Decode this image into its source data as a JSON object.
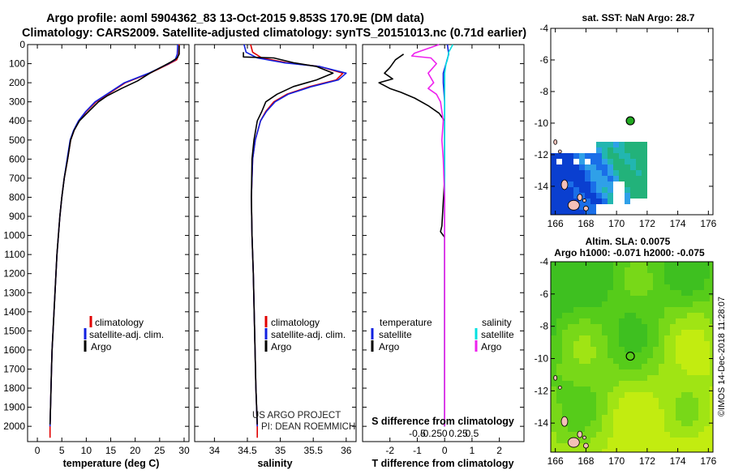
{
  "header": {
    "title_line1": "Argo profile: aoml 5904362_83 13-Oct-2015 9.853S 170.9E (DM data)",
    "title_line2": "Climatology: CARS2009. Satellite-adjusted climatology: synTS_20151013.nc (0.71d earlier)"
  },
  "colors": {
    "climatology": "#e00000",
    "satellite": "#1020e0",
    "argo": "#000000",
    "sal_satellite": "#00e0e0",
    "sal_argo": "#ee22ee"
  },
  "credits": {
    "project": "US ARGO PROJECT",
    "pi": "PI: DEAN ROEMMICH",
    "timestamp": "©IMOS 14-Dec-2018 11:28:07"
  },
  "chart_data": [
    {
      "id": "temperature",
      "type": "line",
      "xlabel": "temperature (deg C)",
      "xlim": [
        -2,
        31
      ],
      "xticks": [
        0,
        5,
        10,
        15,
        20,
        25,
        30
      ],
      "ylim": [
        2080,
        0
      ],
      "yticks": [
        0,
        100,
        200,
        300,
        400,
        500,
        600,
        700,
        800,
        900,
        1000,
        1100,
        1200,
        1300,
        1400,
        1500,
        1600,
        1700,
        1800,
        1900,
        2000
      ],
      "legend": [
        "climatology",
        "satellite-adj. clim.",
        "Argo"
      ],
      "series": [
        {
          "name": "climatology",
          "color": "#e00000",
          "points": [
            [
              29.0,
              0
            ],
            [
              28.9,
              50
            ],
            [
              28.5,
              80
            ],
            [
              27,
              100
            ],
            [
              23,
              150
            ],
            [
              18,
              200
            ],
            [
              15,
              250
            ],
            [
              12,
              300
            ],
            [
              10,
              350
            ],
            [
              8.5,
              400
            ],
            [
              7.5,
              450
            ],
            [
              6.8,
              500
            ],
            [
              6.2,
              600
            ],
            [
              5.5,
              700
            ],
            [
              5.0,
              800
            ],
            [
              4.6,
              900
            ],
            [
              4.3,
              1000
            ],
            [
              4.0,
              1100
            ],
            [
              3.8,
              1200
            ],
            [
              3.6,
              1300
            ],
            [
              3.4,
              1400
            ],
            [
              3.2,
              1500
            ],
            [
              3.0,
              1600
            ],
            [
              2.9,
              1700
            ],
            [
              2.8,
              1800
            ],
            [
              2.7,
              1900
            ],
            [
              2.6,
              2000
            ],
            [
              2.6,
              2060
            ]
          ]
        },
        {
          "name": "satellite-adj. clim.",
          "color": "#1020e0",
          "points": [
            [
              28.7,
              0
            ],
            [
              28.6,
              50
            ],
            [
              28.2,
              80
            ],
            [
              26.8,
              100
            ],
            [
              22.8,
              150
            ],
            [
              17.8,
              200
            ],
            [
              14.8,
              250
            ],
            [
              11.8,
              300
            ],
            [
              9.9,
              350
            ],
            [
              8.4,
              400
            ],
            [
              7.4,
              450
            ],
            [
              6.7,
              500
            ],
            [
              6.1,
              600
            ],
            [
              5.5,
              700
            ],
            [
              5.0,
              800
            ],
            [
              4.6,
              900
            ],
            [
              4.3,
              1000
            ],
            [
              4.0,
              1100
            ],
            [
              3.8,
              1200
            ],
            [
              3.6,
              1300
            ],
            [
              3.4,
              1400
            ],
            [
              3.2,
              1500
            ],
            [
              3.0,
              1600
            ],
            [
              2.9,
              1700
            ],
            [
              2.8,
              1800
            ],
            [
              2.7,
              1900
            ],
            [
              2.6,
              2000
            ]
          ]
        },
        {
          "name": "Argo",
          "color": "#000000",
          "points": [
            [
              29.0,
              5
            ],
            [
              29.0,
              50
            ],
            [
              28.6,
              70
            ],
            [
              27.4,
              90
            ],
            [
              25.2,
              120
            ],
            [
              23.0,
              150
            ],
            [
              20.5,
              190
            ],
            [
              17.2,
              230
            ],
            [
              14.2,
              270
            ],
            [
              12.5,
              300
            ],
            [
              10.5,
              350
            ],
            [
              8.6,
              400
            ],
            [
              7.5,
              450
            ],
            [
              6.8,
              500
            ],
            [
              6.2,
              600
            ],
            [
              5.5,
              700
            ],
            [
              5.0,
              800
            ],
            [
              4.6,
              900
            ],
            [
              4.3,
              1000
            ],
            [
              4.0,
              1100
            ],
            [
              3.8,
              1200
            ],
            [
              3.6,
              1300
            ],
            [
              3.4,
              1400
            ],
            [
              3.2,
              1500
            ],
            [
              3.0,
              1600
            ],
            [
              2.9,
              1700
            ],
            [
              2.8,
              1800
            ],
            [
              2.7,
              1900
            ],
            [
              2.6,
              1990
            ]
          ]
        }
      ]
    },
    {
      "id": "salinity",
      "type": "line",
      "xlabel": "salinity",
      "xlim": [
        33.7,
        36.15
      ],
      "xticks": [
        34,
        34.5,
        35,
        35.5,
        36
      ],
      "xticklabels": [
        "34",
        "34.5",
        "35",
        "35.5",
        "36"
      ],
      "ylim": [
        2080,
        0
      ],
      "legend": [
        "climatology",
        "satellite-adj. clim.",
        "Argo"
      ],
      "series": [
        {
          "name": "climatology",
          "color": "#e00000",
          "points": [
            [
              34.55,
              0
            ],
            [
              34.58,
              40
            ],
            [
              34.72,
              70
            ],
            [
              35.1,
              95
            ],
            [
              35.6,
              115
            ],
            [
              35.95,
              150
            ],
            [
              35.85,
              185
            ],
            [
              35.45,
              220
            ],
            [
              35.1,
              260
            ],
            [
              34.9,
              300
            ],
            [
              34.78,
              350
            ],
            [
              34.7,
              400
            ],
            [
              34.62,
              500
            ],
            [
              34.58,
              600
            ],
            [
              34.56,
              800
            ],
            [
              34.57,
              1000
            ],
            [
              34.59,
              1200
            ],
            [
              34.61,
              1500
            ],
            [
              34.63,
              1800
            ],
            [
              34.65,
              2000
            ],
            [
              34.65,
              2060
            ]
          ]
        },
        {
          "name": "satellite-adj. clim.",
          "color": "#1020e0",
          "points": [
            [
              34.45,
              0
            ],
            [
              34.48,
              40
            ],
            [
              34.65,
              70
            ],
            [
              35.05,
              95
            ],
            [
              35.6,
              115
            ],
            [
              36.0,
              150
            ],
            [
              35.88,
              185
            ],
            [
              35.48,
              220
            ],
            [
              35.12,
              260
            ],
            [
              34.92,
              300
            ],
            [
              34.79,
              350
            ],
            [
              34.7,
              400
            ],
            [
              34.62,
              500
            ],
            [
              34.58,
              600
            ],
            [
              34.56,
              800
            ],
            [
              34.57,
              1000
            ],
            [
              34.59,
              1200
            ],
            [
              34.61,
              1500
            ],
            [
              34.63,
              1800
            ],
            [
              34.65,
              2000
            ]
          ]
        },
        {
          "name": "Argo",
          "color": "#000000",
          "points": [
            [
              34.44,
              40
            ],
            [
              34.44,
              65
            ],
            [
              34.9,
              70
            ],
            [
              35.2,
              95
            ],
            [
              35.55,
              115
            ],
            [
              35.8,
              150
            ],
            [
              35.55,
              185
            ],
            [
              35.2,
              220
            ],
            [
              34.95,
              260
            ],
            [
              34.78,
              300
            ],
            [
              34.72,
              350
            ],
            [
              34.65,
              400
            ],
            [
              34.6,
              500
            ],
            [
              34.57,
              600
            ],
            [
              34.56,
              800
            ],
            [
              34.57,
              1000
            ],
            [
              34.59,
              1200
            ],
            [
              34.61,
              1500
            ],
            [
              34.63,
              1800
            ],
            [
              34.65,
              1990
            ]
          ]
        }
      ]
    },
    {
      "id": "difference",
      "type": "line",
      "xlabel": "T difference from climatology",
      "xlabel2": "S difference from climatology",
      "xlim": [
        -3,
        2.9
      ],
      "xticks": [
        -2,
        -1,
        0,
        1,
        2
      ],
      "xticklabels": [
        "-2",
        "-1",
        "0",
        "1",
        "2"
      ],
      "sticks": [
        -1,
        -0.5,
        0,
        0.5,
        1
      ],
      "sticklabels": [
        "-0.5",
        "-0.25",
        "0",
        "0.25",
        "0.5"
      ],
      "ylim": [
        2080,
        0
      ],
      "legend_title_t": "temperature",
      "legend_title_s": "salinity",
      "legend_t": [
        "satellite",
        "Argo"
      ],
      "legend_s": [
        "satellite",
        "Argo"
      ],
      "series": [
        {
          "name": "T satellite",
          "color": "#1020e0",
          "points": [
            [
              0.1,
              0
            ],
            [
              0.15,
              50
            ],
            [
              0.05,
              100
            ],
            [
              -0.05,
              150
            ],
            [
              -0.05,
              200
            ],
            [
              0,
              300
            ],
            [
              0,
              400
            ],
            [
              0,
              500
            ],
            [
              0,
              700
            ],
            [
              0,
              1000
            ],
            [
              0,
              1500
            ],
            [
              0,
              2000
            ]
          ]
        },
        {
          "name": "T Argo",
          "color": "#000000",
          "points": [
            [
              -1.5,
              50
            ],
            [
              -1.8,
              80
            ],
            [
              -2.0,
              120
            ],
            [
              -2.2,
              150
            ],
            [
              -1.9,
              180
            ],
            [
              -2.4,
              200
            ],
            [
              -2.0,
              230
            ],
            [
              -1.6,
              250
            ],
            [
              -1.1,
              280
            ],
            [
              -0.6,
              320
            ],
            [
              -0.2,
              360
            ],
            [
              0,
              400
            ],
            [
              0,
              500
            ],
            [
              0,
              700
            ],
            [
              -0.1,
              950
            ],
            [
              -0.15,
              980
            ],
            [
              0,
              1010
            ],
            [
              0,
              1500
            ],
            [
              0,
              2000
            ]
          ]
        },
        {
          "name": "S satellite",
          "color": "#00e0e0",
          "points": [
            [
              0.3,
              0
            ],
            [
              0.15,
              40
            ],
            [
              0.1,
              80
            ],
            [
              0.05,
              100
            ],
            [
              0,
              150
            ],
            [
              0,
              250
            ],
            [
              0,
              400
            ],
            [
              0,
              700
            ],
            [
              0,
              1000
            ],
            [
              0,
              1500
            ],
            [
              0,
              2000
            ]
          ]
        },
        {
          "name": "S Argo",
          "color": "#ee22ee",
          "points": [
            [
              -0.2,
              0
            ],
            [
              -1.1,
              45
            ],
            [
              -1.2,
              60
            ],
            [
              -0.5,
              70
            ],
            [
              -0.3,
              100
            ],
            [
              -0.6,
              150
            ],
            [
              -0.4,
              200
            ],
            [
              -0.6,
              230
            ],
            [
              -0.3,
              260
            ],
            [
              -0.15,
              300
            ],
            [
              -0.1,
              350
            ],
            [
              -0.05,
              400
            ],
            [
              -0.1,
              500
            ],
            [
              -0.05,
              600
            ],
            [
              0,
              800
            ],
            [
              0,
              1000
            ],
            [
              0,
              1500
            ],
            [
              0,
              2000
            ]
          ]
        }
      ]
    },
    {
      "id": "sst_map",
      "type": "heatmap",
      "title": "sat. SST: NaN Argo: 28.7",
      "xticks": [
        166,
        168,
        170,
        172,
        174,
        176
      ],
      "yticks": [
        -4,
        -6,
        -8,
        -10,
        -12,
        -14
      ],
      "xlim": [
        165.7,
        176.3
      ],
      "ylim": [
        -4,
        -15.8
      ],
      "argo_position": [
        170.9,
        -9.853
      ]
    },
    {
      "id": "sla_map",
      "type": "heatmap",
      "title": "Altim. SLA: 0.0075",
      "subtitle": "Argo h1000: -0.071 h2000: -0.075",
      "xticks": [
        166,
        168,
        170,
        172,
        174,
        176
      ],
      "yticks": [
        -4,
        -6,
        -8,
        -10,
        -12,
        -14
      ],
      "xlim": [
        165.7,
        176.3
      ],
      "ylim": [
        -4,
        -15.8
      ],
      "argo_position": [
        170.9,
        -9.853
      ]
    }
  ]
}
